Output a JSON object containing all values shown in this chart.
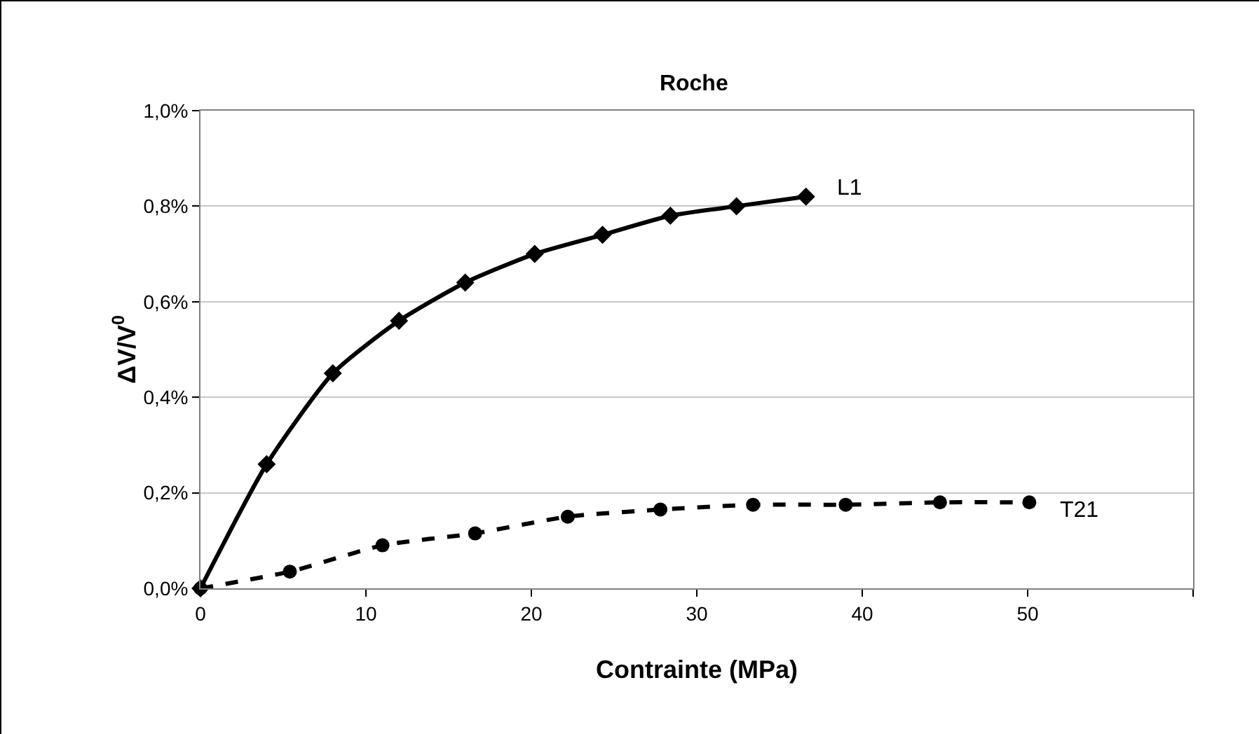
{
  "chart_data": {
    "type": "line",
    "title": "Roche",
    "xlabel": "Contrainte (MPa)",
    "ylabel": "ΔV/V$^{0}$",
    "xlim": [
      0,
      60
    ],
    "xticks": [
      0,
      10,
      20,
      30,
      40,
      50,
      {
        "value": 60,
        "label": null
      }
    ],
    "ylim": [
      0,
      1
    ],
    "yticks": [
      {
        "value": 0,
        "label": "0,0%"
      },
      {
        "value": 0.2,
        "label": "0,2%"
      },
      {
        "value": 0.4,
        "label": "0,4%"
      },
      {
        "value": 0.6,
        "label": "0,6%"
      },
      {
        "value": 0.8,
        "label": "0,8%"
      },
      {
        "value": 1,
        "label": "1,0%"
      }
    ],
    "grid": "y",
    "legend": false,
    "series": [
      {
        "name": "L1",
        "color": "#000000",
        "marker": "diamond",
        "line_style": "solid",
        "x": [
          0,
          4,
          8,
          12,
          16,
          20.2,
          24.3,
          28.4,
          32.4,
          36.6
        ],
        "values": [
          0,
          0.26,
          0.45,
          0.56,
          0.64,
          0.7,
          0.74,
          0.78,
          0.8,
          0.82
        ]
      },
      {
        "name": "T21",
        "color": "#000000",
        "marker": "circle",
        "line_style": "dashed",
        "x": [
          0,
          5.4,
          11,
          16.6,
          22.2,
          27.8,
          33.4,
          39,
          44.7,
          50.1
        ],
        "values": [
          0,
          0.035,
          0.09,
          0.115,
          0.15,
          0.165,
          0.175,
          0.175,
          0.18,
          0.18
        ]
      }
    ]
  }
}
